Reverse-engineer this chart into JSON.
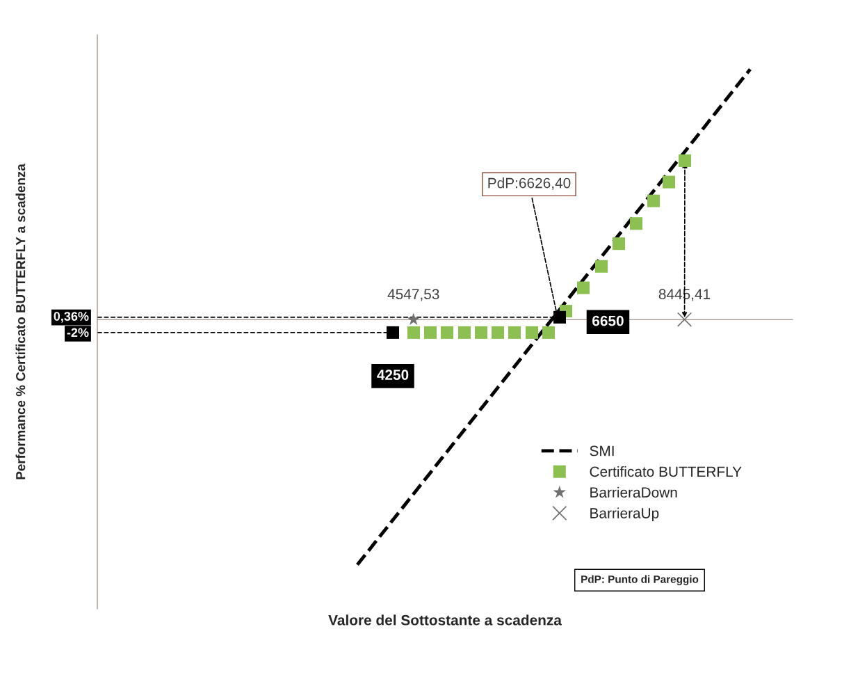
{
  "chart_data": {
    "type": "scatter",
    "xlabel": "Valore del Sottostante a scadenza",
    "ylabel": "Performance % Certificato BUTTERFLY a scadenza",
    "xlim": [
      0,
      10000
    ],
    "xticks": [
      {
        "value": 4547.53,
        "label": "4547,53"
      },
      {
        "value": 8445.41,
        "label": "8445,41"
      }
    ],
    "ylim": [
      -44.6,
      43.9
    ],
    "yticks": [
      {
        "value": 0.36,
        "label": "0,36%"
      },
      {
        "value": -2,
        "label": "-2%"
      }
    ],
    "series": [
      {
        "name": "SMI",
        "type": "line",
        "color": "#000000",
        "line_style": "dashed",
        "marker": "none",
        "x": [
          3740,
          9390
        ],
        "values": [
          -37.8,
          38.6
        ]
      },
      {
        "name": "Certificato BUTTERFLY",
        "color": "#8cc152",
        "marker": "square",
        "x": [
          4550,
          4790,
          5030,
          5280,
          5520,
          5760,
          6000,
          6250,
          6490,
          6740,
          6990,
          7250,
          7500,
          7750,
          8000,
          8220,
          8450
        ],
        "values": [
          -2,
          -2,
          -2,
          -2,
          -2,
          -2,
          -2,
          -2,
          -2,
          1.3,
          4.9,
          8.2,
          11.7,
          14.8,
          18.3,
          21.2,
          24.5
        ]
      },
      {
        "name": "BarrieraDown",
        "color": "#707070",
        "marker": "star",
        "x": [
          4547.53
        ],
        "values": [
          0
        ]
      },
      {
        "name": "BarrieraUp",
        "color": "#707070",
        "marker": "cross",
        "x": [
          8445.41
        ],
        "values": [
          0
        ]
      },
      {
        "color": "#000000",
        "marker": "square",
        "x": [
          4250,
          6650
        ],
        "values": [
          -2,
          0.36
        ]
      }
    ],
    "annotations": [
      {
        "text": "PdP:6626,40",
        "x": 6626.4,
        "y": 0
      },
      {
        "text": "4250",
        "x": 4250,
        "y": -2
      },
      {
        "text": "6650",
        "x": 6650,
        "y": 0.36
      },
      "PdP: Punto di Pareggio"
    ],
    "ref_lines": [
      {
        "axis": "y",
        "value": 0.36,
        "color": "#000000",
        "line_style": "dashed"
      },
      {
        "axis": "y",
        "value": -2,
        "color": "#000000",
        "line_style": "dashed"
      }
    ],
    "legend": "bottom right",
    "grid": false
  }
}
